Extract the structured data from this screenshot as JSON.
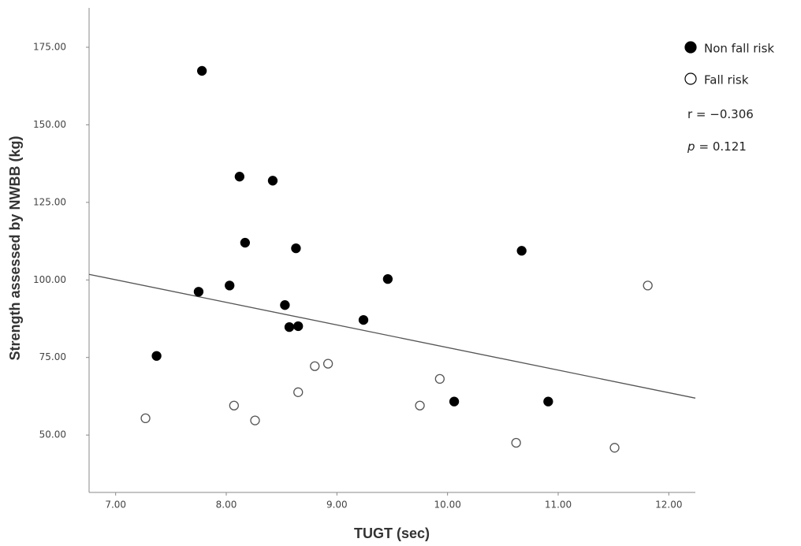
{
  "chart_data": {
    "type": "scatter",
    "xlabel": "TUGT (sec)",
    "ylabel": "Strength assessed by NWBB (kg)",
    "xlim": [
      6.76,
      12.24
    ],
    "ylim": [
      31.5,
      187.7
    ],
    "xticks": [
      {
        "value": 7,
        "label": "7.00"
      },
      {
        "value": 8,
        "label": "8.00"
      },
      {
        "value": 9,
        "label": "9.00"
      },
      {
        "value": 10,
        "label": "10.00"
      },
      {
        "value": 11,
        "label": "11.00"
      },
      {
        "value": 12,
        "label": "12.00"
      }
    ],
    "yticks": [
      {
        "value": 50,
        "label": "50.00"
      },
      {
        "value": 75,
        "label": "75.00"
      },
      {
        "value": 100,
        "label": "100.00"
      },
      {
        "value": 125,
        "label": "125.00"
      },
      {
        "value": 150,
        "label": "150.00"
      },
      {
        "value": 175,
        "label": "175.00"
      }
    ],
    "legend": "top-right",
    "series": [
      {
        "name": "Non fall risk",
        "color": "#000000",
        "marker": "filled",
        "x": [
          7.78,
          8.12,
          8.42,
          8.17,
          8.63,
          8.03,
          7.75,
          8.53,
          8.57,
          8.65,
          9.24,
          9.46,
          10.67,
          7.37,
          10.06,
          10.91
        ],
        "values": [
          167.4,
          133.3,
          132.0,
          112.0,
          110.2,
          98.2,
          96.2,
          91.9,
          84.8,
          85.1,
          87.1,
          100.3,
          109.4,
          75.5,
          60.8,
          60.8
        ]
      },
      {
        "name": "Fall risk",
        "color": "#000000",
        "marker": "open",
        "x": [
          7.27,
          8.07,
          8.26,
          8.65,
          8.8,
          8.92,
          9.75,
          9.93,
          10.62,
          11.51,
          11.81
        ],
        "values": [
          55.4,
          59.5,
          54.7,
          63.8,
          72.2,
          73.0,
          59.5,
          68.1,
          47.5,
          45.9,
          98.2
        ]
      }
    ],
    "fit_line": {
      "color": "#555555",
      "x": [
        6.76,
        12.24
      ],
      "values": [
        101.8,
        61.9
      ]
    },
    "annotations": [
      {
        "text": "r = −0.306"
      },
      {
        "italic": "p",
        "text": "= 0.121"
      }
    ]
  }
}
